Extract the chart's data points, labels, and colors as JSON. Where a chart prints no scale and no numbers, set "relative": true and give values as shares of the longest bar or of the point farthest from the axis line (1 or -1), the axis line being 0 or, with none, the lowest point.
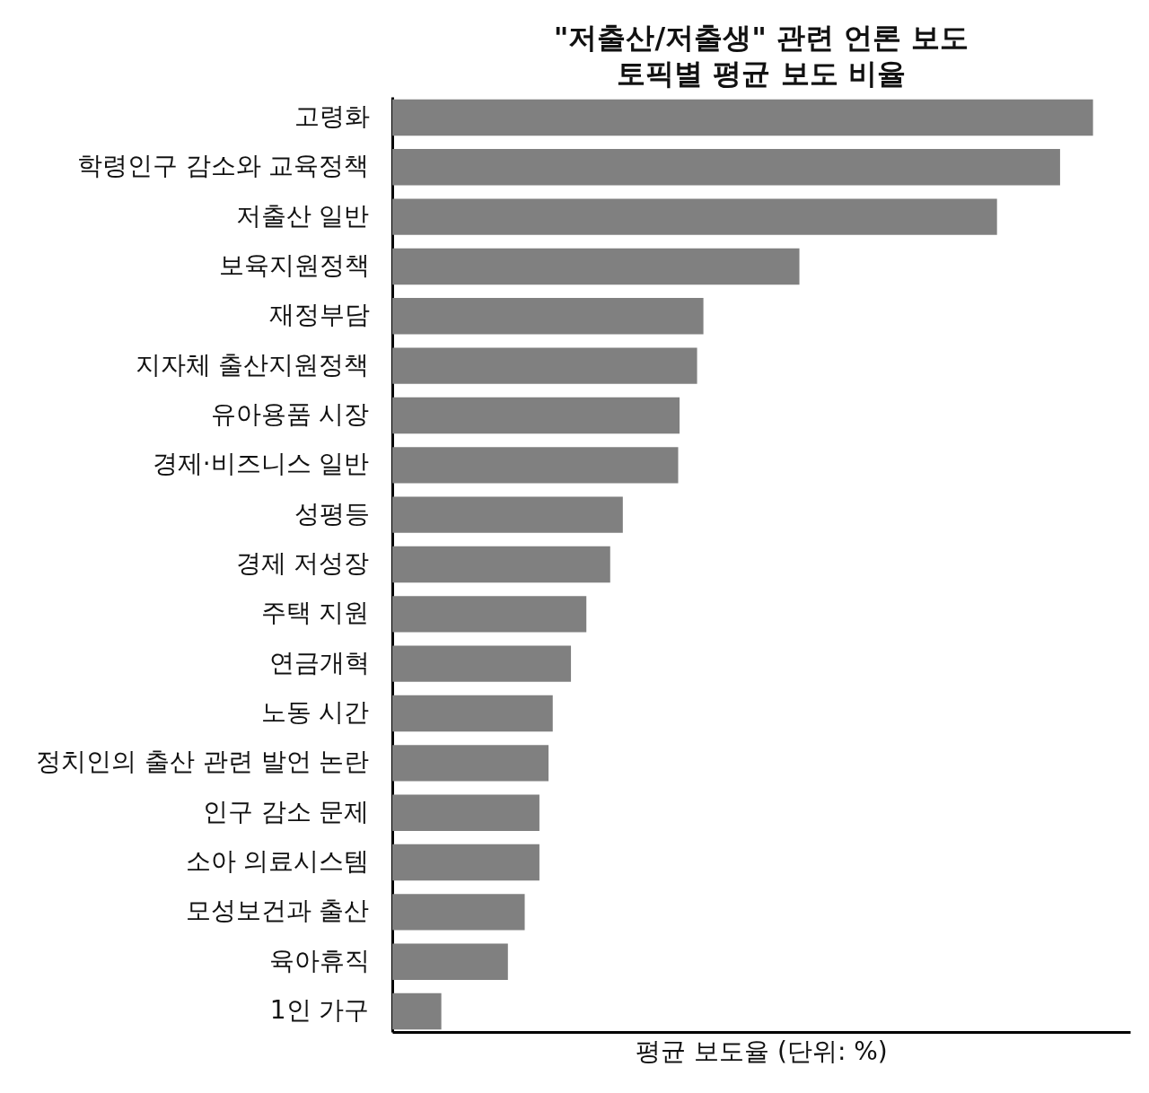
{
  "chart_data": {
    "type": "bar",
    "orientation": "horizontal",
    "relative": true,
    "title": "\"저출산/저출생\" 관련 언론 보도\n토픽별 평균 보도 비율",
    "xlabel": "평균 보도율 (단위: %)",
    "color": "#808080",
    "categories": [
      "고령화",
      "학령인구 감소와 교육정책",
      "저출산 일반",
      "보육지원정책",
      "재정부담",
      "지자체 출산지원정책",
      "유아용품 시장",
      "경제·비즈니스 일반",
      "성평등",
      "경제 저성장",
      "주택 지원",
      "연금개혁",
      "노동 시간",
      "정치인의 출산 관련 발언 논란",
      "인구 감소 문제",
      "소아 의료시스템",
      "모성보건과 출산",
      "육아휴직",
      "1인 가구"
    ],
    "values": [
      1,
      0.953,
      0.863,
      0.581,
      0.444,
      0.435,
      0.41,
      0.408,
      0.329,
      0.311,
      0.277,
      0.255,
      0.229,
      0.223,
      0.21,
      0.21,
      0.189,
      0.165,
      0.07
    ]
  }
}
